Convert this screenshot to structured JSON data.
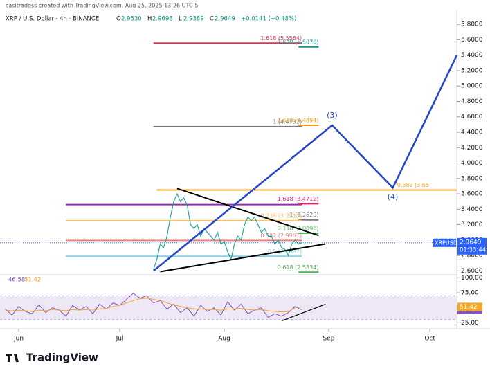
{
  "header": {
    "credit": "casitradess created with TradingView.com, Aug 25, 2025 13:26 UTC-5",
    "symbol": "XRP / U.S. Dollar · 4h · BINANCE",
    "ohlc": [
      {
        "k": "O",
        "v": "2.9530"
      },
      {
        "k": "H",
        "v": "2.9698"
      },
      {
        "k": "L",
        "v": "2.9389"
      },
      {
        "k": "C",
        "v": "2.9649"
      }
    ],
    "change": "+0.0141 (+0.48%)"
  },
  "footer": {
    "logo": "TradingView"
  },
  "chart_data": [
    {
      "type": "line",
      "ticker": "XRPUSD",
      "countdown": "01:33:44",
      "last_color": "#2962ff",
      "xlim": [
        -5.5,
        130
      ],
      "xticks": [
        {
          "value": 0,
          "label": "Jun"
        },
        {
          "value": 30,
          "label": "Jul"
        },
        {
          "value": 61,
          "label": "Aug"
        },
        {
          "value": 92,
          "label": "Sep"
        },
        {
          "value": 122,
          "label": "Oct"
        }
      ],
      "ylim": [
        2.55,
        5.9
      ],
      "yticks": [
        {
          "value": 2.6,
          "label": "2.6000"
        },
        {
          "value": 2.8,
          "label": "2.8000"
        },
        {
          "value": 3,
          "label": "3.0000"
        },
        {
          "value": 3.2,
          "label": "3.2000"
        },
        {
          "value": 3.4,
          "label": "3.4000"
        },
        {
          "value": 3.6,
          "label": "3.6000"
        },
        {
          "value": 3.8,
          "label": "3.8000"
        },
        {
          "value": 4,
          "label": "4.0000"
        },
        {
          "value": 4.2,
          "label": "4.2000"
        },
        {
          "value": 4.4,
          "label": "4.4000"
        },
        {
          "value": 4.6,
          "label": "4.6000"
        },
        {
          "value": 4.8,
          "label": "4.8000"
        },
        {
          "value": 5,
          "label": "5.0000"
        },
        {
          "value": 5.2,
          "label": "5.2000"
        },
        {
          "value": 5.4,
          "label": "5.4000"
        },
        {
          "value": 5.6,
          "label": "5.6000"
        },
        {
          "value": 5.8,
          "label": "5.8000"
        }
      ],
      "price": {
        "color": "#26a69a",
        "x": [
          40,
          41,
          42,
          43,
          44,
          45,
          46,
          47,
          48,
          49,
          50,
          51,
          52,
          53,
          54,
          55,
          56,
          57,
          58,
          59,
          60,
          61,
          62,
          63,
          64,
          65,
          66,
          67,
          68,
          69,
          70,
          71,
          72,
          73,
          74,
          75,
          76,
          77,
          78,
          79,
          80,
          81,
          82,
          83,
          84
        ],
        "values": [
          2.62,
          2.75,
          2.95,
          2.9,
          3.05,
          3.3,
          3.5,
          3.6,
          3.5,
          3.55,
          3.45,
          3.2,
          3.15,
          3.2,
          3.05,
          3.15,
          3.1,
          3.05,
          3.0,
          3.1,
          2.95,
          2.98,
          2.85,
          2.75,
          2.95,
          3.05,
          3.0,
          3.2,
          3.3,
          3.25,
          3.3,
          3.2,
          3.1,
          3.15,
          3.05,
          3.05,
          2.95,
          3.0,
          2.9,
          2.88,
          2.8,
          2.95,
          3.0,
          2.95,
          2.9649
        ]
      },
      "projection": {
        "color": "#2647c8",
        "x": [
          40,
          93,
          111,
          130
        ],
        "values": [
          2.6,
          4.49,
          3.68,
          5.4
        ],
        "labels": [
          "(3)",
          "(4)"
        ]
      },
      "trendlines": [
        {
          "color": "#000000",
          "x": [
            47,
            89
          ],
          "values": [
            3.67,
            3.06
          ]
        },
        {
          "color": "#000000",
          "x": [
            42,
            91
          ],
          "values": [
            2.59,
            2.95
          ]
        }
      ],
      "levels": [
        {
          "value": 5.5564,
          "x": [
            40,
            84
          ],
          "color": "#e0345a",
          "label": "1.618 (5.5564)"
        },
        {
          "value": 5.507,
          "x": [
            83,
            89
          ],
          "color": "#089981",
          "label": "7.618 (5.5070)"
        },
        {
          "value": 4.4732,
          "x": [
            40,
            84
          ],
          "color": "#787b86",
          "label": "1 (4.4732)"
        },
        {
          "value": 4.4894,
          "x": [
            83,
            89
          ],
          "color": "#f59e0b",
          "label": "1.618 (4.4894)"
        },
        {
          "value": 3.65,
          "x": [
            41,
            130
          ],
          "color": "#f5a623",
          "label": "0.382 (3.65"
        },
        {
          "value": 3.46,
          "x": [
            14,
            84
          ],
          "color": "#9c27b0"
        },
        {
          "value": 3.4712,
          "x": [
            83,
            89
          ],
          "color": "#e91e63",
          "label": "1.618 (3.4712)"
        },
        {
          "value": 3.262,
          "x": [
            83,
            89
          ],
          "color": "#787b86",
          "label": "1 (3.2620)"
        },
        {
          "value": 3.2515,
          "x": [
            14,
            84
          ],
          "color": "#f5c26b",
          "label": "0.236 (3.2515)"
        },
        {
          "value": 3.0896,
          "x": [
            83,
            89
          ],
          "color": "#4caf50",
          "label": "0.118 (3.0896)"
        },
        {
          "value": 2.9961,
          "x": [
            14,
            84
          ],
          "color": "#f08080",
          "label": "0.382 (2.9961)"
        },
        {
          "value": 2.7897,
          "x": [
            14,
            84
          ],
          "color": "#7fd3e8",
          "label": "0.5 (2.7897)"
        },
        {
          "value": 2.5834,
          "x": [
            83,
            89
          ],
          "color": "#4caf50",
          "label": "0.618 (2.5834)"
        }
      ]
    },
    {
      "type": "line",
      "ylim": [
        15,
        105
      ],
      "yticks": [
        {
          "value": 100,
          "label": "100.00"
        },
        {
          "value": 75,
          "label": "75.00"
        },
        {
          "value": 25,
          "label": "25.00"
        }
      ],
      "band": [
        30,
        70
      ],
      "x": [
        -4,
        -2,
        0,
        2,
        4,
        6,
        8,
        10,
        12,
        14,
        16,
        18,
        20,
        22,
        24,
        26,
        28,
        30,
        32,
        34,
        36,
        38,
        40,
        42,
        44,
        46,
        48,
        50,
        52,
        54,
        56,
        58,
        60,
        62,
        64,
        66,
        68,
        70,
        72,
        74,
        76,
        78,
        80,
        82,
        84
      ],
      "series": [
        {
          "color": "#7e57c2",
          "values": [
            48,
            38,
            52,
            44,
            40,
            55,
            42,
            50,
            46,
            36,
            54,
            46,
            52,
            40,
            56,
            48,
            58,
            54,
            64,
            74,
            66,
            70,
            58,
            62,
            48,
            56,
            42,
            50,
            36,
            54,
            44,
            50,
            38,
            60,
            46,
            56,
            40,
            46,
            50,
            34,
            40,
            36,
            42,
            52,
            46.58
          ]
        },
        {
          "color": "#f5a623",
          "values": [
            46,
            45,
            46,
            45,
            44,
            46,
            45,
            47,
            46,
            45,
            47,
            46,
            47,
            46,
            48,
            49,
            52,
            54,
            58,
            62,
            65,
            66,
            64,
            62,
            58,
            55,
            52,
            50,
            48,
            48,
            47,
            47,
            46,
            48,
            48,
            49,
            47,
            46,
            47,
            45,
            44,
            43,
            44,
            50,
            51.42
          ]
        }
      ],
      "trendline": {
        "color": "#000000",
        "x": [
          78,
          91
        ],
        "values": [
          28.2,
          55.8
        ]
      }
    }
  ]
}
